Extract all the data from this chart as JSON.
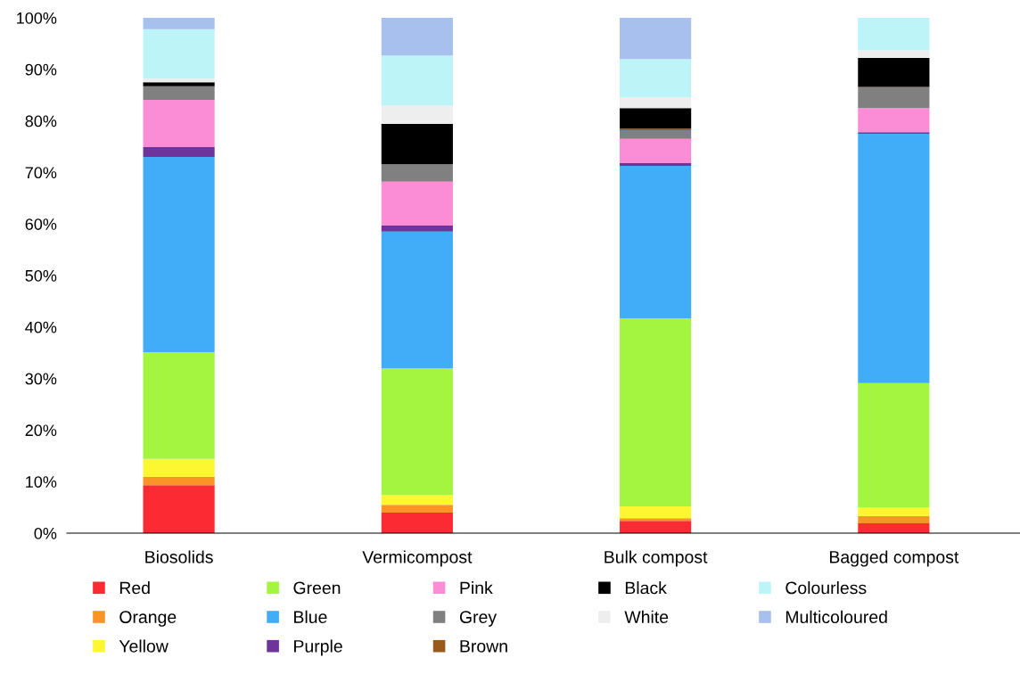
{
  "chart_data": {
    "type": "bar",
    "stacked": true,
    "categories": [
      "Biosolids",
      "Vermicompost",
      "Bulk compost",
      "Bagged compost"
    ],
    "series": [
      {
        "name": "Red",
        "color": "#fc2a33",
        "values": [
          9.3,
          4.0,
          2.4,
          1.9
        ]
      },
      {
        "name": "Orange",
        "color": "#fb9426",
        "values": [
          1.6,
          1.5,
          0.5,
          1.4
        ]
      },
      {
        "name": "Yellow",
        "color": "#fdf732",
        "values": [
          3.5,
          1.9,
          2.3,
          1.7
        ]
      },
      {
        "name": "Green",
        "color": "#a4f53f",
        "values": [
          20.7,
          24.6,
          36.5,
          24.1
        ]
      },
      {
        "name": "Blue",
        "color": "#41adf9",
        "values": [
          37.9,
          26.5,
          29.6,
          48.4
        ]
      },
      {
        "name": "Purple",
        "color": "#6f339c",
        "values": [
          1.9,
          1.2,
          0.5,
          0.3
        ]
      },
      {
        "name": "Pink",
        "color": "#fb8cd6",
        "values": [
          9.2,
          8.5,
          4.7,
          4.7
        ]
      },
      {
        "name": "Grey",
        "color": "#808080",
        "values": [
          2.6,
          3.4,
          1.7,
          4.0
        ]
      },
      {
        "name": "Brown",
        "color": "#995a1c",
        "values": [
          0,
          0,
          0.3,
          0.1
        ]
      },
      {
        "name": "Black",
        "color": "#000000",
        "values": [
          0.8,
          7.8,
          4.0,
          5.6
        ]
      },
      {
        "name": "White",
        "color": "#eeeeee",
        "values": [
          0.7,
          3.6,
          2.1,
          1.5
        ]
      },
      {
        "name": "Colourless",
        "color": "#bdf4f8",
        "values": [
          9.6,
          9.7,
          7.4,
          6.3
        ]
      },
      {
        "name": "Multicoloured",
        "color": "#a7c0ee",
        "values": [
          2.2,
          7.3,
          8.0,
          0
        ]
      }
    ],
    "ylim": [
      0,
      100
    ],
    "yticks": [
      {
        "value": 0,
        "label": "0%"
      },
      {
        "value": 10,
        "label": "10%"
      },
      {
        "value": 20,
        "label": "20%"
      },
      {
        "value": 30,
        "label": "30%"
      },
      {
        "value": 40,
        "label": "40%"
      },
      {
        "value": 50,
        "label": "50%"
      },
      {
        "value": 60,
        "label": "60%"
      },
      {
        "value": 70,
        "label": "70%"
      },
      {
        "value": 80,
        "label": "80%"
      },
      {
        "value": 90,
        "label": "90%"
      },
      {
        "value": 100,
        "label": "100%"
      }
    ],
    "grid": false,
    "legend": "bottom"
  }
}
